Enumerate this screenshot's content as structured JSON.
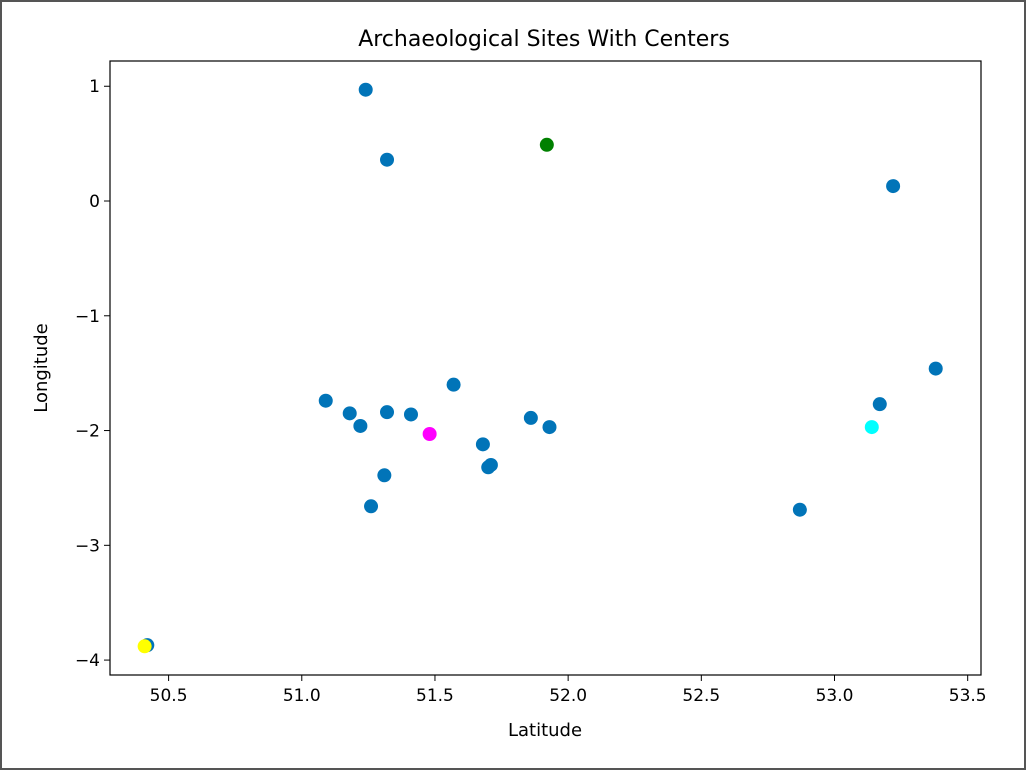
{
  "chart_data": {
    "type": "scatter",
    "title": "Archaeological Sites With Centers",
    "xlabel": "Latitude",
    "ylabel": "Longitude",
    "xlim": [
      50.28,
      53.55
    ],
    "ylim": [
      -4.13,
      1.22
    ],
    "xticks": [
      "50.5",
      "51.0",
      "51.5",
      "52.0",
      "52.5",
      "53.0",
      "53.5"
    ],
    "yticks": [
      "1",
      "0",
      "−1",
      "−2",
      "−3",
      "−4"
    ],
    "grid": false,
    "series": [
      {
        "color": "#0174b8",
        "points": [
          [
            51.24,
            0.97
          ],
          [
            51.32,
            0.36
          ],
          [
            53.22,
            0.13
          ],
          [
            53.38,
            -1.46
          ],
          [
            51.57,
            -1.6
          ],
          [
            51.09,
            -1.74
          ],
          [
            53.17,
            -1.77
          ],
          [
            51.18,
            -1.85
          ],
          [
            51.32,
            -1.84
          ],
          [
            51.41,
            -1.86
          ],
          [
            51.86,
            -1.89
          ],
          [
            51.22,
            -1.96
          ],
          [
            51.93,
            -1.97
          ],
          [
            51.68,
            -2.12
          ],
          [
            51.71,
            -2.3
          ],
          [
            51.7,
            -2.32
          ],
          [
            51.31,
            -2.39
          ],
          [
            51.26,
            -2.66
          ],
          [
            52.87,
            -2.69
          ],
          [
            50.42,
            -3.87
          ]
        ]
      },
      {
        "color": "#ffff00",
        "points": [
          [
            50.41,
            -3.88
          ]
        ]
      },
      {
        "color": "#ff00ff",
        "points": [
          [
            51.48,
            -2.03
          ]
        ]
      },
      {
        "color": "#008000",
        "points": [
          [
            51.92,
            0.49
          ]
        ]
      },
      {
        "color": "#00ffff",
        "points": [
          [
            53.14,
            -1.97
          ]
        ]
      }
    ]
  }
}
